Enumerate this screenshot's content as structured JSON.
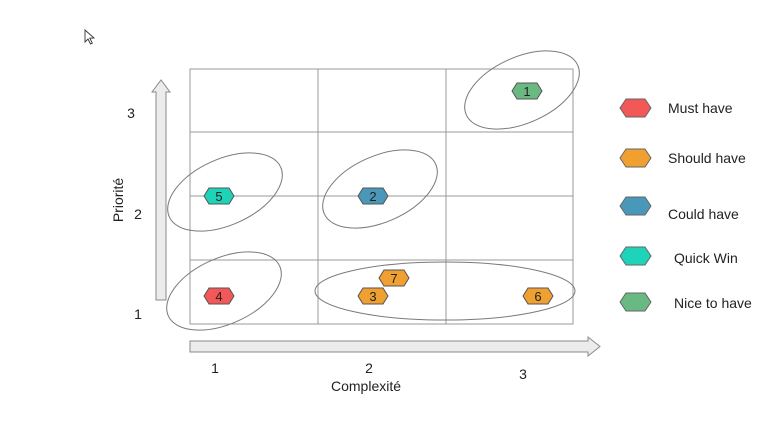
{
  "axes": {
    "x_label": "Complexité",
    "y_label": "Priorité",
    "x_ticks": [
      "1",
      "2",
      "3"
    ],
    "y_ticks": [
      "1",
      "2",
      "3"
    ]
  },
  "legend": [
    {
      "label": "Must have",
      "color": "#f25858"
    },
    {
      "label": "Should have",
      "color": "#f0a030"
    },
    {
      "label": "Could have",
      "color": "#4a98b9"
    },
    {
      "label": "Quick Win",
      "color": "#1dd3b8"
    },
    {
      "label": "Nice to have",
      "color": "#6ab982"
    }
  ],
  "items": [
    {
      "id": "1",
      "category": "Nice to have",
      "color": "#6ab982"
    },
    {
      "id": "2",
      "category": "Could have",
      "color": "#4a98b9"
    },
    {
      "id": "3",
      "category": "Should have",
      "color": "#f0a030"
    },
    {
      "id": "4",
      "category": "Must have",
      "color": "#f25858"
    },
    {
      "id": "5",
      "category": "Quick Win",
      "color": "#1dd3b8"
    },
    {
      "id": "6",
      "category": "Should have",
      "color": "#f0a030"
    },
    {
      "id": "7",
      "category": "Should have",
      "color": "#f0a030"
    }
  ],
  "cursor_icon": "mouse-pointer-icon"
}
